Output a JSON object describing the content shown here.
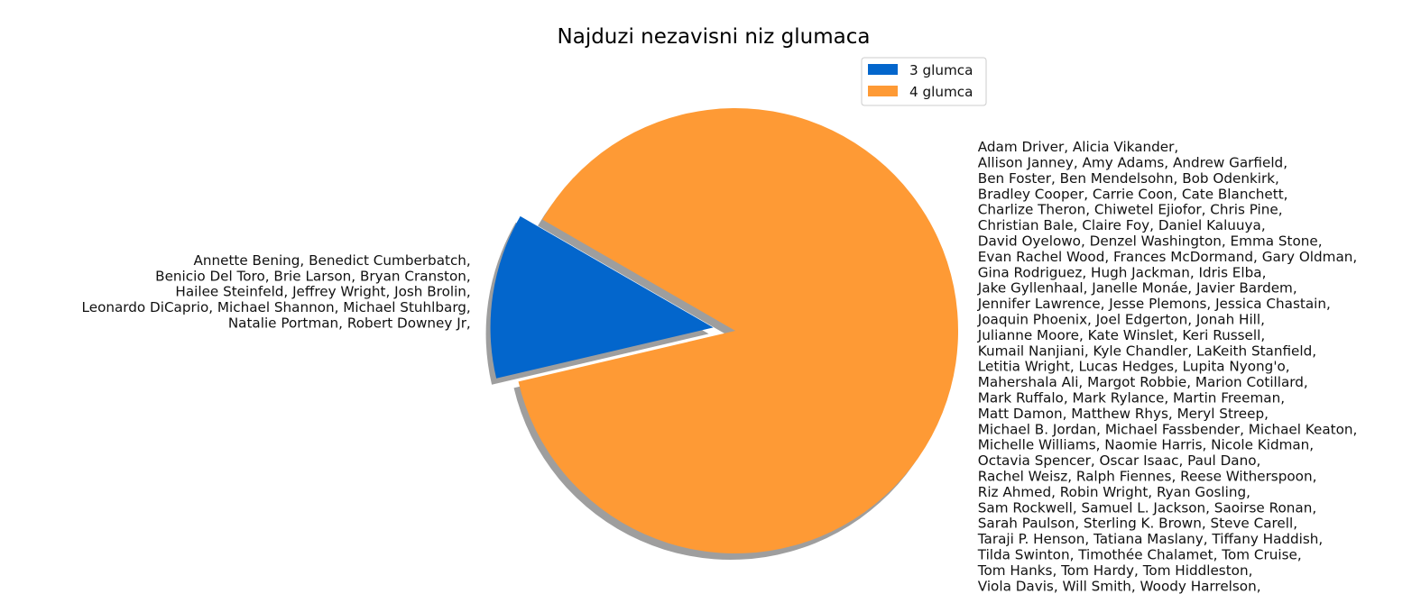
{
  "chart_data": {
    "type": "pie",
    "title": "Najduzi nezavisni niz glumaca",
    "colors": {
      "slice_3": "#0366cc",
      "slice_4": "#fe9a35"
    },
    "legend": {
      "placement": "top-right",
      "entries": [
        "3 glumca",
        "4 glumca"
      ]
    },
    "slices": [
      {
        "name": "3 glumca",
        "value": 12,
        "exploded": true,
        "label_lines": [
          "Annette Bening, Benedict Cumberbatch,",
          "Benicio Del Toro, Brie Larson, Bryan Cranston,",
          "Hailee Steinfeld, Jeffrey Wright, Josh Brolin,",
          "Leonardo DiCaprio, Michael Shannon, Michael Stuhlbarg,",
          "Natalie Portman, Robert Downey Jr,"
        ]
      },
      {
        "name": "4 glumca",
        "value": 88,
        "exploded": false,
        "label_lines": [
          "Adam Driver, Alicia Vikander,",
          "Allison Janney, Amy Adams, Andrew Garfield,",
          "Ben Foster, Ben Mendelsohn, Bob Odenkirk,",
          "Bradley Cooper, Carrie Coon, Cate Blanchett,",
          "Charlize Theron, Chiwetel Ejiofor, Chris Pine,",
          "Christian Bale, Claire Foy, Daniel Kaluuya,",
          "David Oyelowo, Denzel Washington, Emma Stone,",
          "Evan Rachel Wood, Frances McDormand, Gary Oldman,",
          "Gina Rodriguez, Hugh Jackman, Idris Elba,",
          "Jake Gyllenhaal, Janelle Monáe, Javier Bardem,",
          "Jennifer Lawrence, Jesse Plemons, Jessica Chastain,",
          "Joaquin Phoenix, Joel Edgerton, Jonah Hill,",
          "Julianne Moore, Kate Winslet, Keri Russell,",
          "Kumail Nanjiani, Kyle Chandler, LaKeith Stanfield,",
          "Letitia Wright, Lucas Hedges, Lupita Nyong'o,",
          "Mahershala Ali, Margot Robbie, Marion Cotillard,",
          "Mark Ruffalo, Mark Rylance, Martin Freeman,",
          "Matt Damon, Matthew Rhys, Meryl Streep,",
          "Michael B. Jordan, Michael Fassbender, Michael Keaton,",
          "Michelle Williams, Naomie Harris, Nicole Kidman,",
          "Octavia Spencer, Oscar Isaac, Paul Dano,",
          "Rachel Weisz, Ralph Fiennes, Reese Witherspoon,",
          "Riz Ahmed, Robin Wright, Ryan Gosling,",
          "Sam Rockwell, Samuel L. Jackson, Saoirse Ronan,",
          "Sarah Paulson, Sterling K. Brown, Steve Carell,",
          "Taraji P. Henson, Tatiana Maslany, Tiffany Haddish,",
          "Tilda Swinton, Timothée Chalamet, Tom Cruise,",
          "Tom Hanks, Tom Hardy, Tom Hiddleston,",
          "Viola Davis, Will Smith, Woody Harrelson,"
        ]
      }
    ]
  }
}
